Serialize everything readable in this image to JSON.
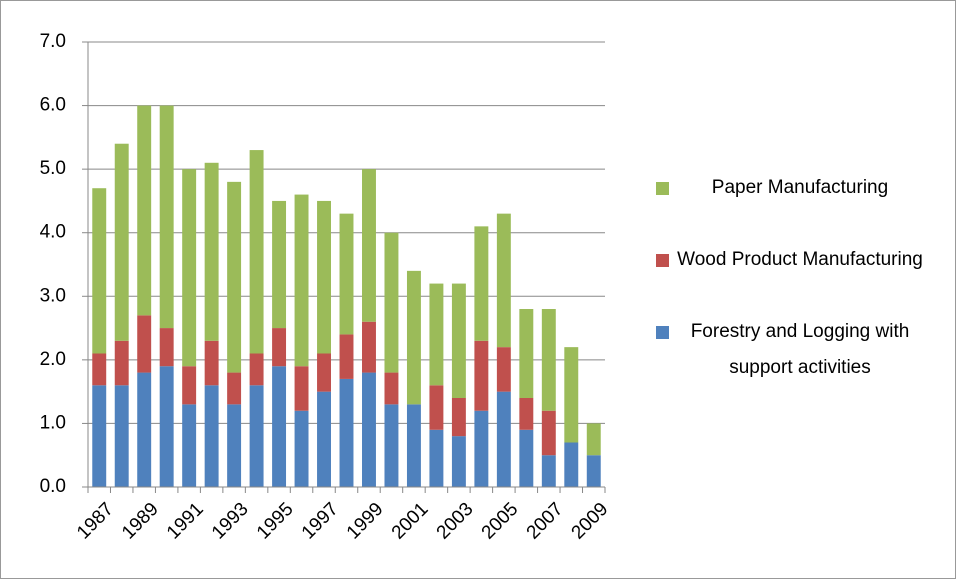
{
  "chart_data": {
    "type": "stacked_bar",
    "categories": [
      "1987",
      null,
      "1989",
      null,
      "1991",
      null,
      "1993",
      null,
      "1995",
      null,
      "1997",
      null,
      "1999",
      null,
      "2001",
      null,
      "2003",
      null,
      "2005",
      null,
      "2007",
      null,
      "2009"
    ],
    "series": [
      {
        "name": "Forestry and Logging with support activities",
        "color": "#4f81bd",
        "values": [
          1.6,
          1.6,
          1.8,
          1.9,
          1.3,
          1.6,
          1.3,
          1.6,
          1.9,
          1.2,
          1.5,
          1.7,
          1.8,
          1.3,
          1.3,
          0.9,
          0.8,
          1.2,
          1.5,
          0.9,
          0.5,
          0.7,
          0.5
        ]
      },
      {
        "name": "Wood Product Manufacturing",
        "color": "#c0504d",
        "values": [
          0.5,
          0.7,
          0.9,
          0.6,
          0.6,
          0.7,
          0.5,
          0.5,
          0.6,
          0.7,
          0.6,
          0.7,
          0.8,
          0.5,
          0,
          0.7,
          0.6,
          1.1,
          0.7,
          0.5,
          0.7,
          0,
          0
        ]
      },
      {
        "name": "Paper Manufacturing",
        "color": "#9bbb59",
        "values": [
          2.6,
          3.1,
          3.3,
          3.5,
          3.1,
          2.8,
          3.0,
          3.2,
          2.0,
          2.7,
          2.4,
          1.9,
          2.4,
          2.2,
          2.1,
          1.6,
          1.8,
          1.8,
          2.1,
          1.4,
          1.6,
          1.5,
          0.5
        ]
      }
    ],
    "ylim": [
      0,
      7
    ],
    "yticks": [
      {
        "value": 0,
        "label": "0.0"
      },
      {
        "value": 1,
        "label": "1.0"
      },
      {
        "value": 2,
        "label": "2.0"
      },
      {
        "value": 3,
        "label": "3.0"
      },
      {
        "value": 4,
        "label": "4.0"
      },
      {
        "value": 5,
        "label": "5.0"
      },
      {
        "value": 6,
        "label": "6.0"
      },
      {
        "value": 7,
        "label": "7.0"
      }
    ],
    "grid": true,
    "legend": "right"
  }
}
